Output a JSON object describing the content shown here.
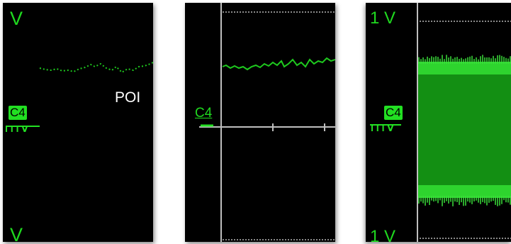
{
  "colors": {
    "trace": "#1ec91e",
    "label": "#1fd91f",
    "badge_bg": "#22e022",
    "grid_line": "#bfbfbf",
    "background": "#000000"
  },
  "panels": [
    {
      "name": "panel-left",
      "top_scale_label": "V",
      "bottom_scale_label": "V",
      "channel_badge": "C4",
      "unit_label": "mV",
      "cursor_text": "POI"
    },
    {
      "name": "panel-middle",
      "channel_label": "C4"
    },
    {
      "name": "panel-right",
      "top_scale_label": "1 V",
      "bottom_scale_label": "1 V",
      "channel_badge": "C4",
      "unit_label": "mV"
    }
  ]
}
